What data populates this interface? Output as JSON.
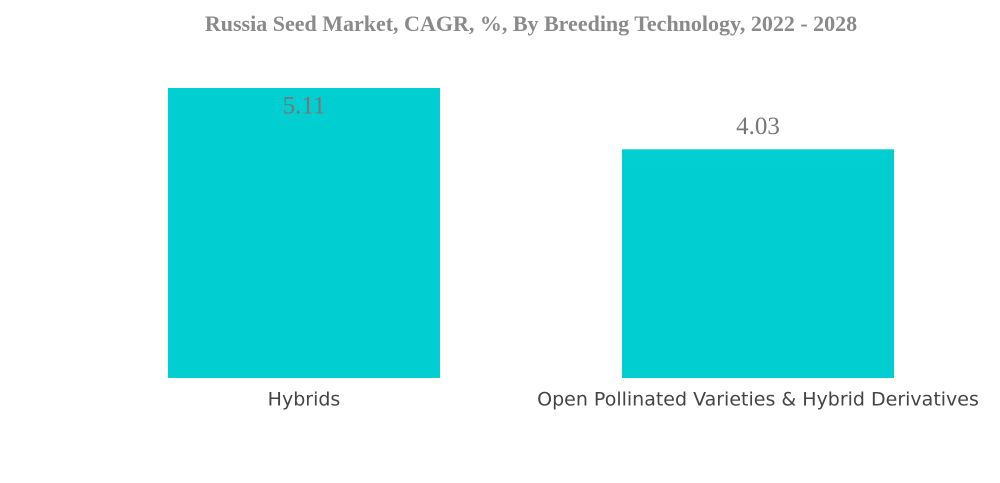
{
  "chart_data": {
    "type": "bar",
    "title": "Russia Seed Market, CAGR, %, By Breeding Technology, 2022 - 2028",
    "categories": [
      "Hybrids",
      "Open Pollinated Varieties & Hybrid Derivatives"
    ],
    "values": [
      5.11,
      4.03
    ],
    "color": "#00ced1"
  }
}
